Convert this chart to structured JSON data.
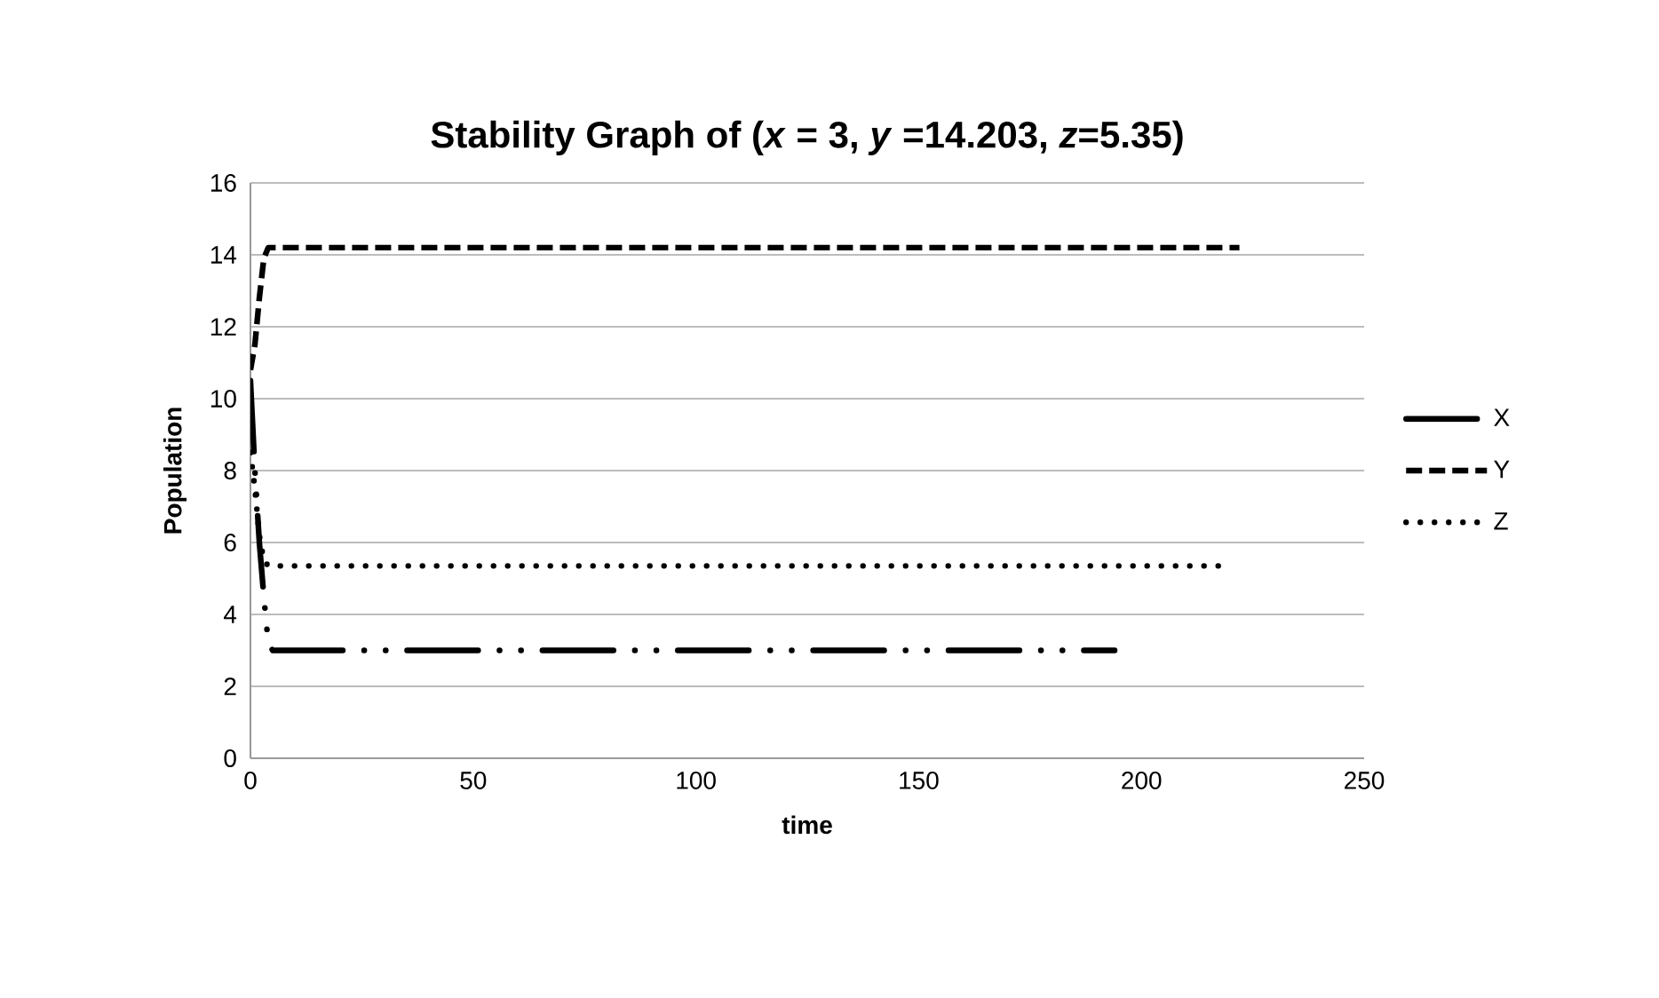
{
  "chart_data": {
    "type": "line",
    "title": "Stability Graph of (*x* = 3, *y* =14.203, *z*=5.35)",
    "xlabel": "time",
    "ylabel": "Population",
    "xlim": [
      0,
      250
    ],
    "xticks": [
      0,
      50,
      100,
      150,
      200,
      250
    ],
    "ylim": [
      0,
      16
    ],
    "yticks": [
      0,
      2,
      4,
      6,
      8,
      10,
      12,
      14,
      16
    ],
    "grid": "y",
    "legend": "right",
    "marker": "none",
    "series": [
      {
        "name": "X",
        "color": "#000000",
        "line_style": "dashdotdotted",
        "x": [
          0,
          1,
          2,
          3,
          4,
          5,
          194
        ],
        "values": [
          10.5,
          8,
          6,
          4.5,
          3.2,
          3,
          3
        ]
      },
      {
        "name": "Y",
        "color": "#000000",
        "line_style": "dashed",
        "x": [
          0,
          1,
          2,
          3,
          4,
          222
        ],
        "values": [
          10.8,
          11.5,
          12.8,
          13.9,
          14.2,
          14.2
        ]
      },
      {
        "name": "Z",
        "color": "#000000",
        "line_style": "dotted",
        "x": [
          0,
          1,
          2,
          3,
          4,
          219
        ],
        "values": [
          8.5,
          7.5,
          6.2,
          5.5,
          5.35,
          5.35
        ]
      }
    ]
  }
}
